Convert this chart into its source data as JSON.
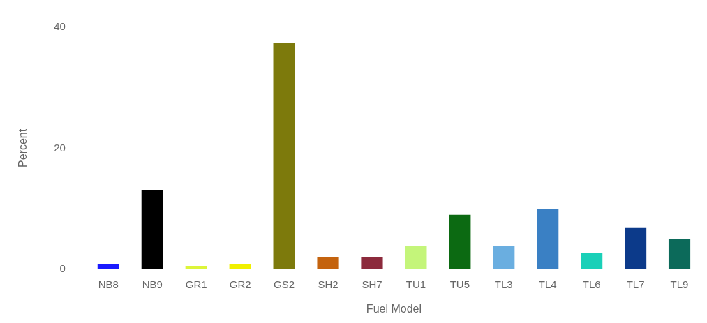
{
  "chart_data": {
    "type": "bar",
    "xlabel": "Fuel Model",
    "ylabel": "Percent",
    "categories": [
      "NB8",
      "NB9",
      "GR1",
      "GR2",
      "GS2",
      "SH2",
      "SH7",
      "TU1",
      "TU5",
      "TL3",
      "TL4",
      "TL6",
      "TL7",
      "TL9"
    ],
    "values": [
      0.8,
      13,
      0.5,
      0.8,
      37.4,
      2,
      2,
      3.9,
      9,
      3.9,
      10,
      2.7,
      6.8,
      5
    ],
    "colors": [
      "#1a1aff",
      "#000000",
      "#ddf53a",
      "#f0f000",
      "#7d7a0c",
      "#c4630e",
      "#8c2a3c",
      "#c4f57a",
      "#0c6a12",
      "#6aaee0",
      "#3a80c4",
      "#1ad0b8",
      "#0c3a8a",
      "#0c6a5a"
    ],
    "ylim": [
      0,
      40
    ],
    "yticks": [
      0,
      20,
      40
    ],
    "grid": false,
    "legend": false
  }
}
